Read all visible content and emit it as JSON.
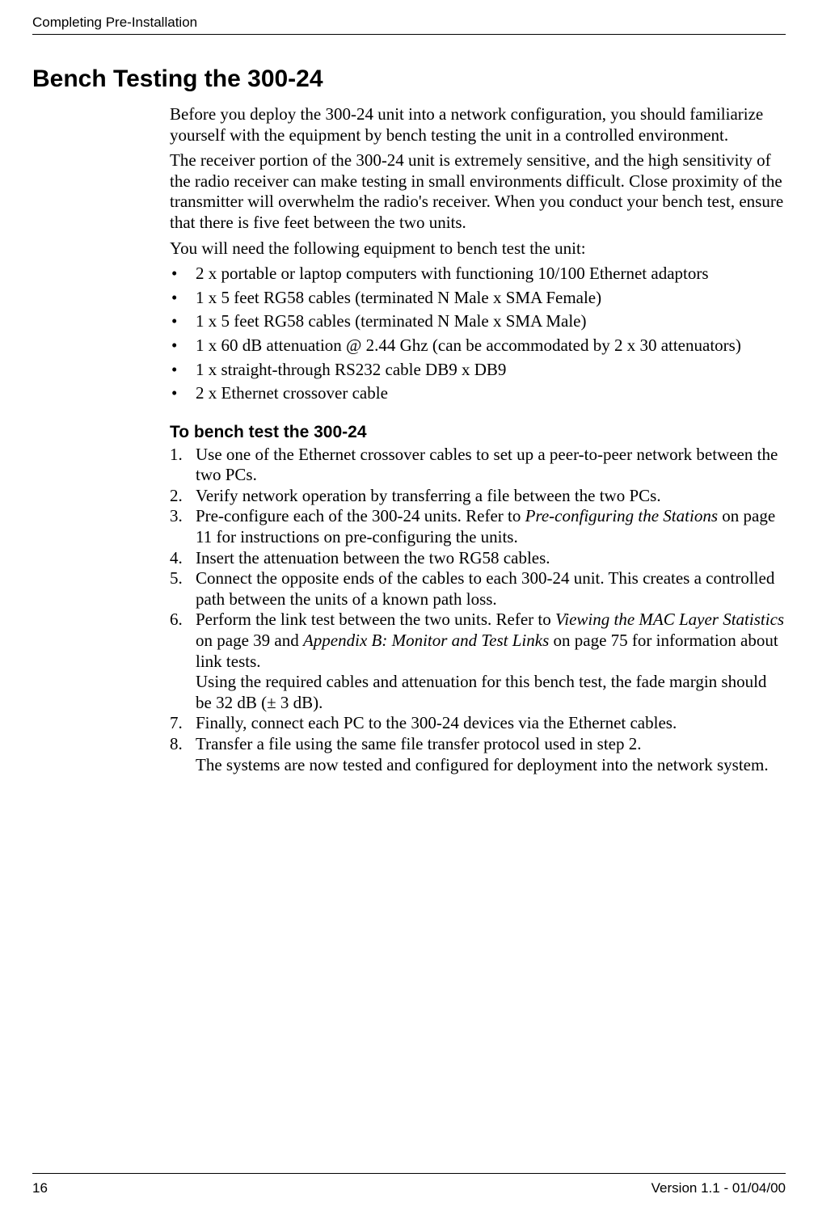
{
  "header": {
    "running_title": "Completing Pre-Installation"
  },
  "title": "Bench Testing the 300-24",
  "paras": {
    "p1": "Before you deploy the 300-24 unit into a network configuration, you should familiarize yourself with the equipment by bench testing the unit in a controlled environment.",
    "p2": "The receiver portion of the 300-24 unit is extremely sensitive, and the high sensitivity of the radio receiver can make testing in small environments difficult. Close proximity of the transmitter will overwhelm the radio's receiver. When you conduct your bench test, ensure that there is five feet between the two units.",
    "p3": "You will need the following equipment to bench test the unit:"
  },
  "bullets": {
    "b1": "2 x portable or laptop computers with functioning 10/100 Ethernet adaptors",
    "b2": "1 x 5 feet RG58 cables (terminated N Male x SMA Female)",
    "b3": "1 x 5 feet RG58 cables (terminated N Male x SMA Male)",
    "b4": "1 x 60 dB attenuation @ 2.44 Ghz (can be accommodated by 2 x 30 attenuators)",
    "b5": "1 x straight-through RS232 cable DB9 x DB9",
    "b6": "2 x Ethernet crossover cable"
  },
  "subheading": "To bench test the 300-24",
  "steps": {
    "s1": "Use one of the Ethernet crossover cables to set up a peer-to-peer network between the two PCs.",
    "s2": "Verify network operation by transferring a file between the two PCs.",
    "s3a": "Pre-configure each of the 300-24 units. Refer to ",
    "s3b": "Pre-configuring the Stations",
    "s3c": " on page 11 for instructions on pre-configuring the units.",
    "s4": "Insert the attenuation between the two RG58 cables.",
    "s5": "Connect the opposite ends of the cables to each 300-24 unit. This creates a controlled path between the units of a known path loss.",
    "s6a": "Perform the link test between the two units. Refer to ",
    "s6b": "Viewing the MAC Layer Statistics",
    "s6c": " on page 39 and ",
    "s6d": "Appendix B: Monitor and Test Links",
    "s6e": " on page 75 for information about link tests.",
    "s6f": "Using the required cables and attenuation for this bench test, the fade margin should be 32 dB (± 3 dB).",
    "s7": "Finally, connect each PC to the 300-24 devices via the Ethernet cables.",
    "s8a": "Transfer a file using the same file transfer protocol used in step 2.",
    "s8b": "The systems are now tested and configured for deployment into the network system."
  },
  "footer": {
    "page_number": "16",
    "version": "Version 1.1 - 01/04/00"
  }
}
